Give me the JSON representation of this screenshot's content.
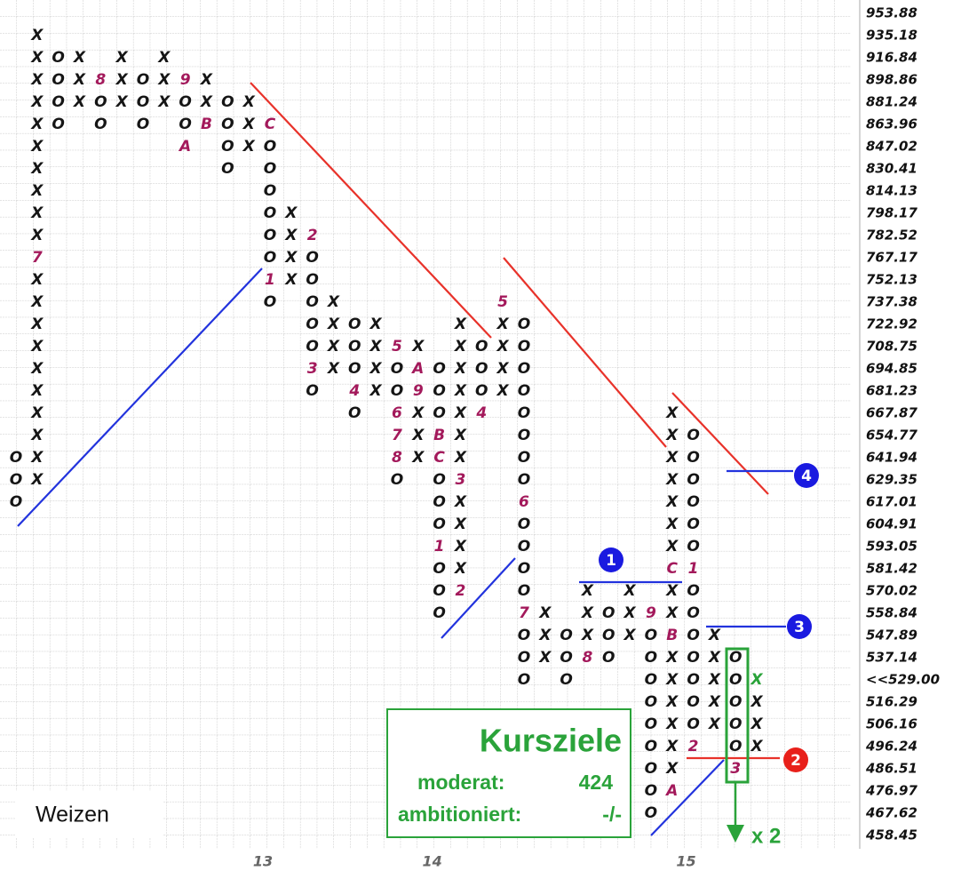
{
  "chart_data": {
    "type": "point_and_figure",
    "price_labels": [
      "953.88",
      "935.18",
      "916.84",
      "898.86",
      "881.24",
      "863.96",
      "847.02",
      "830.41",
      "814.13",
      "798.17",
      "782.52",
      "767.17",
      "752.13",
      "737.38",
      "722.92",
      "708.75",
      "694.85",
      "681.23",
      "667.87",
      "654.77",
      "641.94",
      "629.35",
      "617.01",
      "604.91",
      "593.05",
      "581.42",
      "570.02",
      "558.84",
      "547.89",
      "537.14",
      "<<529.00",
      "516.29",
      "506.16",
      "496.24",
      "486.51",
      "476.97",
      "467.62",
      "458.45"
    ],
    "current_label": 30,
    "columns": [
      {
        "top": "641.94",
        "boxes": "OOO"
      },
      {
        "top": "935.18",
        "boxes": "XXXXXXXXXX7XXXXXXXXXX"
      },
      {
        "top": "916.84",
        "boxes": "OOOO"
      },
      {
        "top": "916.84",
        "boxes": "XXX"
      },
      {
        "top": "898.86",
        "boxes": "8OO"
      },
      {
        "top": "916.84",
        "boxes": "XXX"
      },
      {
        "top": "898.86",
        "boxes": "OOO"
      },
      {
        "top": "916.84",
        "boxes": "XXX"
      },
      {
        "top": "898.86",
        "boxes": "9OOA"
      },
      {
        "top": "898.86",
        "boxes": "XXB"
      },
      {
        "top": "881.24",
        "boxes": "OOOO"
      },
      {
        "top": "881.24",
        "boxes": "XXX"
      },
      {
        "top": "863.96",
        "boxes": "COOOOOO1O"
      },
      {
        "top": "798.17",
        "boxes": "XXXX"
      },
      {
        "top": "782.52",
        "boxes": "2OOOOO3O"
      },
      {
        "top": "737.38",
        "boxes": "XXXX"
      },
      {
        "top": "722.92",
        "boxes": "OOO4O"
      },
      {
        "top": "722.92",
        "boxes": "XXXX"
      },
      {
        "top": "708.75",
        "boxes": "5OO678O"
      },
      {
        "top": "708.75",
        "boxes": "XA9XXX"
      },
      {
        "top": "694.85",
        "boxes": "OOOBCOOO1OOO"
      },
      {
        "top": "722.92",
        "boxes": "XXXXXXX3XXXX2"
      },
      {
        "top": "708.75",
        "boxes": "OOO4"
      },
      {
        "top": "737.38",
        "boxes": "5XXXX"
      },
      {
        "top": "722.92",
        "boxes": "OOOOOOOO6OOOO7OOO"
      },
      {
        "top": "558.84",
        "boxes": "XXX"
      },
      {
        "top": "547.89",
        "boxes": "OOO"
      },
      {
        "top": "570.02",
        "boxes": "XXX8"
      },
      {
        "top": "558.84",
        "boxes": "OOO"
      },
      {
        "top": "570.02",
        "boxes": "XXX"
      },
      {
        "top": "558.84",
        "boxes": "9OOOOOOOOO"
      },
      {
        "top": "667.87",
        "boxes": "XXXXXXXCXXBXXXXXXA"
      },
      {
        "top": "654.77",
        "boxes": "OOOOOO1OOOOOOO2"
      },
      {
        "top": "547.89",
        "boxes": "XXXXX"
      },
      {
        "top": "537.14",
        "boxes": "OOOOO3"
      },
      {
        "top": "516.29",
        "boxes": "XXX"
      }
    ],
    "current_box": {
      "column": 35,
      "price": "<<529.00",
      "symbol": "X",
      "color": "#2aa33a"
    },
    "box_color": "#151515",
    "month_color": "#a3195b",
    "x_labels": [
      {
        "label": "13",
        "column": 12
      },
      {
        "label": "14",
        "column": 20
      },
      {
        "label": "15",
        "column": 32
      }
    ],
    "markers": [
      "1",
      "2",
      "3",
      "4"
    ],
    "instrument": "Weizen",
    "targets": {
      "title": "Kursziele",
      "moderate_label": "moderat:",
      "moderate_value": "424",
      "ambitious_label": "ambitioniert:",
      "ambitious_value": "-/-"
    },
    "multiplier": "x 2"
  }
}
